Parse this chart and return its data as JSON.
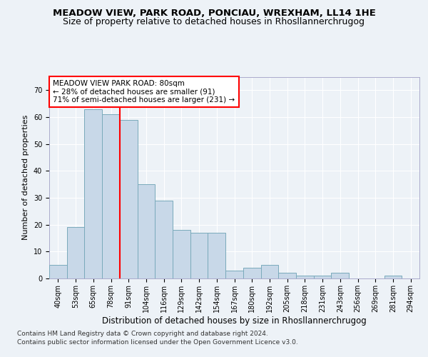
{
  "title": "MEADOW VIEW, PARK ROAD, PONCIAU, WREXHAM, LL14 1HE",
  "subtitle": "Size of property relative to detached houses in Rhosllannerchrugog",
  "xlabel": "Distribution of detached houses by size in Rhosllannerchrugog",
  "ylabel": "Number of detached properties",
  "categories": [
    "40sqm",
    "53sqm",
    "65sqm",
    "78sqm",
    "91sqm",
    "104sqm",
    "116sqm",
    "129sqm",
    "142sqm",
    "154sqm",
    "167sqm",
    "180sqm",
    "192sqm",
    "205sqm",
    "218sqm",
    "231sqm",
    "243sqm",
    "256sqm",
    "269sqm",
    "281sqm",
    "294sqm"
  ],
  "values": [
    5,
    19,
    63,
    61,
    59,
    35,
    29,
    18,
    17,
    17,
    3,
    4,
    5,
    2,
    1,
    1,
    2,
    0,
    0,
    1,
    0
  ],
  "bar_color": "#c8d8e8",
  "bar_edge_color": "#7aaabb",
  "vline_x_index": 3.5,
  "vline_color": "red",
  "annotation_box_text": "MEADOW VIEW PARK ROAD: 80sqm\n← 28% of detached houses are smaller (91)\n71% of semi-detached houses are larger (231) →",
  "ylim": [
    0,
    75
  ],
  "yticks": [
    0,
    10,
    20,
    30,
    40,
    50,
    60,
    70
  ],
  "footer1": "Contains HM Land Registry data © Crown copyright and database right 2024.",
  "footer2": "Contains public sector information licensed under the Open Government Licence v3.0.",
  "title_fontsize": 9.5,
  "subtitle_fontsize": 9,
  "xlabel_fontsize": 8.5,
  "ylabel_fontsize": 8,
  "tick_fontsize": 7,
  "annotation_fontsize": 7.5,
  "footer_fontsize": 6.5,
  "bg_color": "#edf2f7",
  "plot_bg_color": "#edf2f7",
  "grid_color": "#ffffff"
}
